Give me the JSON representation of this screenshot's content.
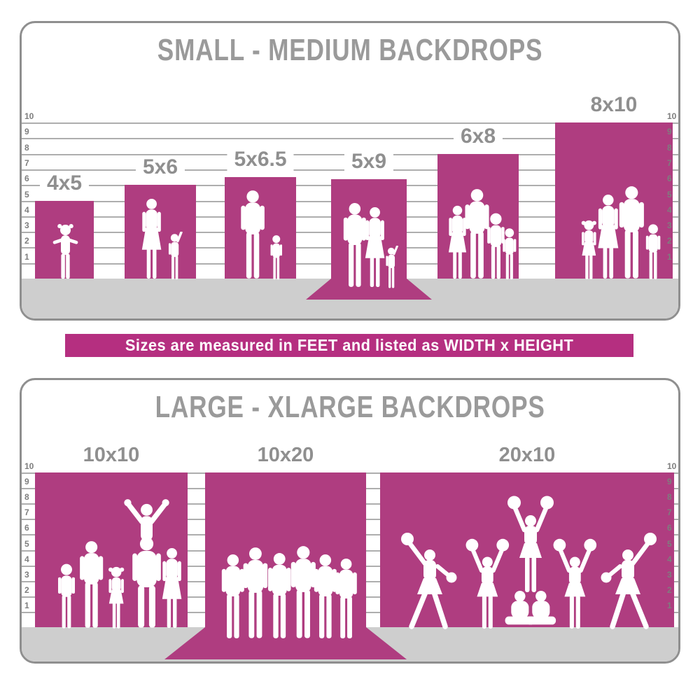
{
  "colors": {
    "bar_magenta": "#af3d80",
    "banner_magenta": "#b52f80",
    "title_gray": "#9a9a9a",
    "label_gray": "#8f8f8f",
    "floor_gray": "#cecece",
    "gridline_gray": "#aeaeae",
    "border_gray": "#8f8f8f",
    "silhouette_white": "#ffffff"
  },
  "banner": {
    "text": "Sizes are measured in FEET and listed as WIDTH x HEIGHT"
  },
  "panels": [
    {
      "title": "SMALL - MEDIUM BACKDROPS",
      "scale_ticks": [
        "1",
        "2",
        "3",
        "4",
        "5",
        "6",
        "7",
        "8",
        "9",
        "10"
      ],
      "bars": [
        {
          "label": "4x5",
          "width_ft": 4,
          "height_ft": 5,
          "sweep": false,
          "figures": "toddler-girl-silhouette"
        },
        {
          "label": "5x6",
          "width_ft": 5,
          "height_ft": 6,
          "sweep": false,
          "figures": "mother-and-child-silhouette"
        },
        {
          "label": "5x6.5",
          "width_ft": 5,
          "height_ft": 6.5,
          "sweep": false,
          "figures": "father-and-son-silhouette"
        },
        {
          "label": "5x9",
          "width_ft": 5,
          "height_ft": 9,
          "sweep": true,
          "figures": "couple-with-child-silhouette"
        },
        {
          "label": "6x8",
          "width_ft": 6,
          "height_ft": 8,
          "sweep": false,
          "figures": "family-of-four-silhouette"
        },
        {
          "label": "8x10",
          "width_ft": 8,
          "height_ft": 10,
          "sweep": false,
          "figures": "family-of-four-silhouette"
        }
      ]
    },
    {
      "title": "LARGE - XLARGE BACKDROPS",
      "scale_ticks": [
        "1",
        "2",
        "3",
        "4",
        "5",
        "6",
        "7",
        "8",
        "9",
        "10"
      ],
      "bars": [
        {
          "label": "10x10",
          "width_ft": 10,
          "height_ft": 10,
          "sweep": false,
          "figures": "extended-family-silhouette"
        },
        {
          "label": "10x20",
          "width_ft": 10,
          "height_ft": 20,
          "sweep": true,
          "figures": "sports-team-silhouette"
        },
        {
          "label": "20x10",
          "width_ft": 20,
          "height_ft": 10,
          "sweep": false,
          "figures": "cheerleaders-silhouette"
        }
      ]
    }
  ],
  "chart_data": [
    {
      "type": "bar",
      "title": "SMALL - MEDIUM BACKDROPS",
      "categories": [
        "4x5",
        "5x6",
        "5x6.5",
        "5x9",
        "6x8",
        "8x10"
      ],
      "series": [
        {
          "name": "width_ft",
          "values": [
            4,
            5,
            5,
            5,
            6,
            8
          ]
        },
        {
          "name": "height_ft",
          "values": [
            5,
            6,
            6.5,
            9,
            8,
            10
          ]
        }
      ],
      "ylabel": "feet",
      "ylim": [
        0,
        10
      ],
      "grid": true,
      "annotations": "5x9 backdrop includes a floor sweep shown as a trapezoid on the floor"
    },
    {
      "type": "bar",
      "title": "LARGE - XLARGE BACKDROPS",
      "categories": [
        "10x10",
        "10x20",
        "20x10"
      ],
      "series": [
        {
          "name": "width_ft",
          "values": [
            10,
            10,
            20
          ]
        },
        {
          "name": "height_ft",
          "values": [
            10,
            20,
            10
          ]
        }
      ],
      "ylabel": "feet",
      "ylim": [
        0,
        10
      ],
      "grid": true,
      "annotations": "10x20 backdrop includes a floor sweep shown as a trapezoid on the floor"
    }
  ]
}
